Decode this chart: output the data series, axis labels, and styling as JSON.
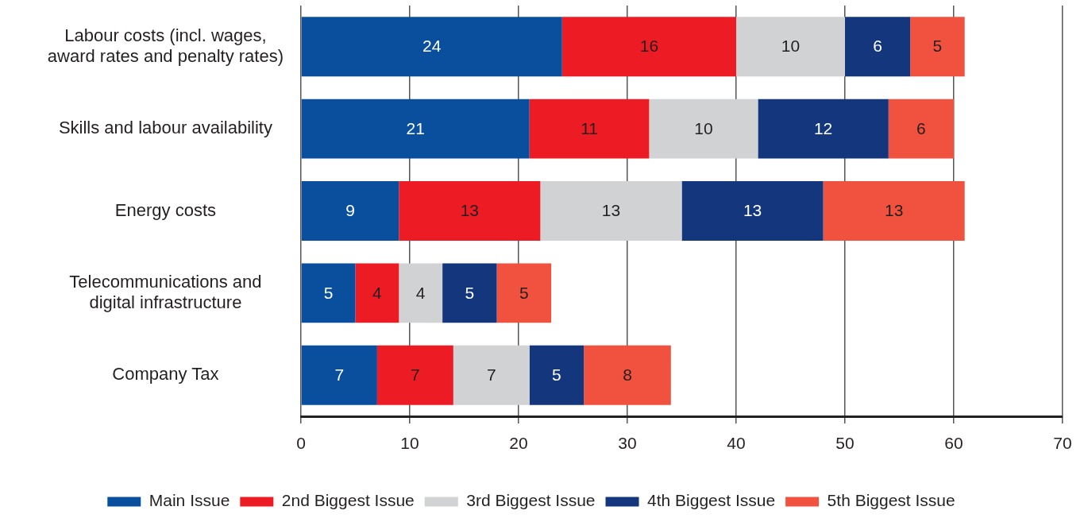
{
  "chart_data": {
    "type": "bar",
    "orientation": "horizontal",
    "stacked": true,
    "categories": [
      "Labour costs (incl. wages, award rates and penalty rates)",
      "Skills and labour availability",
      "Energy costs",
      "Telecommunications and digital infrastructure",
      "Company Tax"
    ],
    "series": [
      {
        "name": "Main Issue",
        "color": "#0a4f9e",
        "values": [
          24,
          21,
          9,
          5,
          7
        ]
      },
      {
        "name": "2nd Biggest Issue",
        "color": "#ed1c24",
        "values": [
          16,
          11,
          13,
          4,
          7
        ]
      },
      {
        "name": "3rd Biggest Issue",
        "color": "#d1d2d4",
        "values": [
          10,
          10,
          13,
          4,
          7
        ]
      },
      {
        "name": "4th Biggest Issue",
        "color": "#13367c",
        "values": [
          6,
          12,
          13,
          5,
          5
        ]
      },
      {
        "name": "5th Biggest Issue",
        "color": "#f0523f",
        "values": [
          5,
          6,
          13,
          5,
          8
        ]
      }
    ],
    "xlim": [
      0,
      70
    ],
    "xticks": [
      0,
      10,
      20,
      30,
      40,
      50,
      60,
      70
    ],
    "grid": "x",
    "legend": "bottom",
    "data_labels": true
  }
}
